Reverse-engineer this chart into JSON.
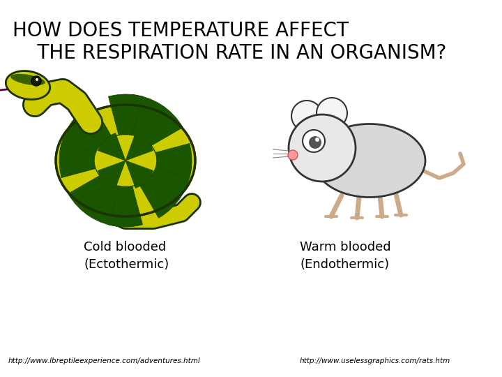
{
  "title_line1": "HOW DOES TEMPERATURE AFFECT",
  "title_line2": "    THE RESPIRATION RATE IN AN ORGANISM?",
  "label_left": "Cold blooded\n(Ectothermic)",
  "label_right": "Warm blooded\n(Endothermic)",
  "url_left": "http://www.lbreptileexperience.com/adventures.html",
  "url_right": "http://www.uselessgraphics.com/rats.htm",
  "bg_color": "#ffffff",
  "text_color": "#000000",
  "title_fontsize": 20,
  "label_fontsize": 13,
  "url_fontsize": 7.5
}
